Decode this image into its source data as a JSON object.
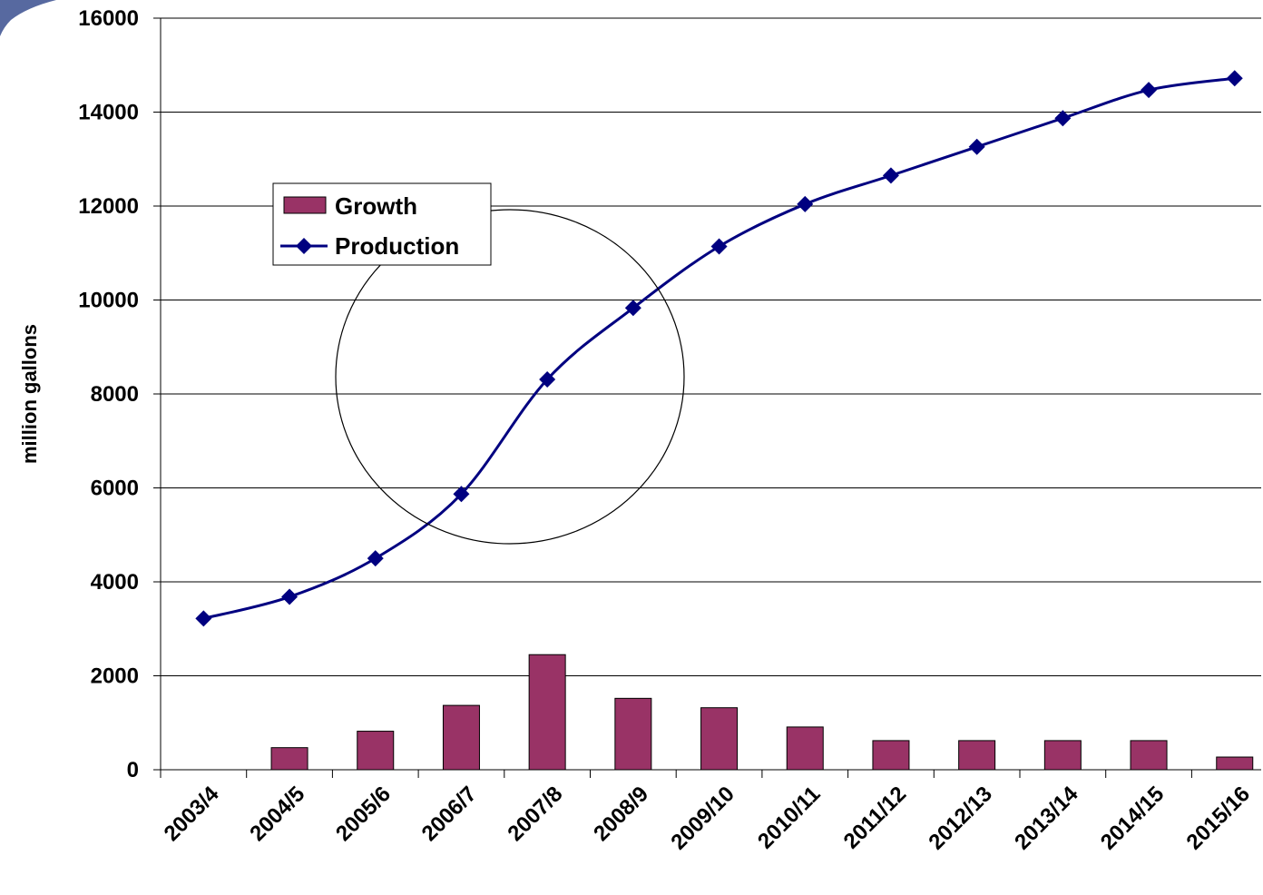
{
  "chart_data": {
    "type": "bar+line",
    "categories": [
      "2003/4",
      "2004/5",
      "2005/6",
      "2006/7",
      "2007/8",
      "2008/9",
      "2009/10",
      "2010/11",
      "2011/12",
      "2012/13",
      "2013/14",
      "2014/15",
      "2015/16"
    ],
    "series": [
      {
        "name": "Growth",
        "type": "bar",
        "color": "#993366",
        "values": [
          0,
          470,
          820,
          1370,
          2450,
          1520,
          1320,
          910,
          620,
          620,
          620,
          620,
          270
        ]
      },
      {
        "name": "Production",
        "type": "line",
        "color": "#000080",
        "values": [
          3220,
          3680,
          4500,
          5870,
          8310,
          9830,
          11140,
          12040,
          12650,
          13260,
          13870,
          14470,
          14720
        ]
      }
    ],
    "ylabel": "million gallons",
    "ylim": [
      0,
      16000
    ],
    "yticks": [
      0,
      2000,
      4000,
      6000,
      8000,
      10000,
      12000,
      14000,
      16000
    ],
    "grid": true,
    "legend_position": "upper-left",
    "annotation": "circle around 2006/7–2008/9"
  }
}
